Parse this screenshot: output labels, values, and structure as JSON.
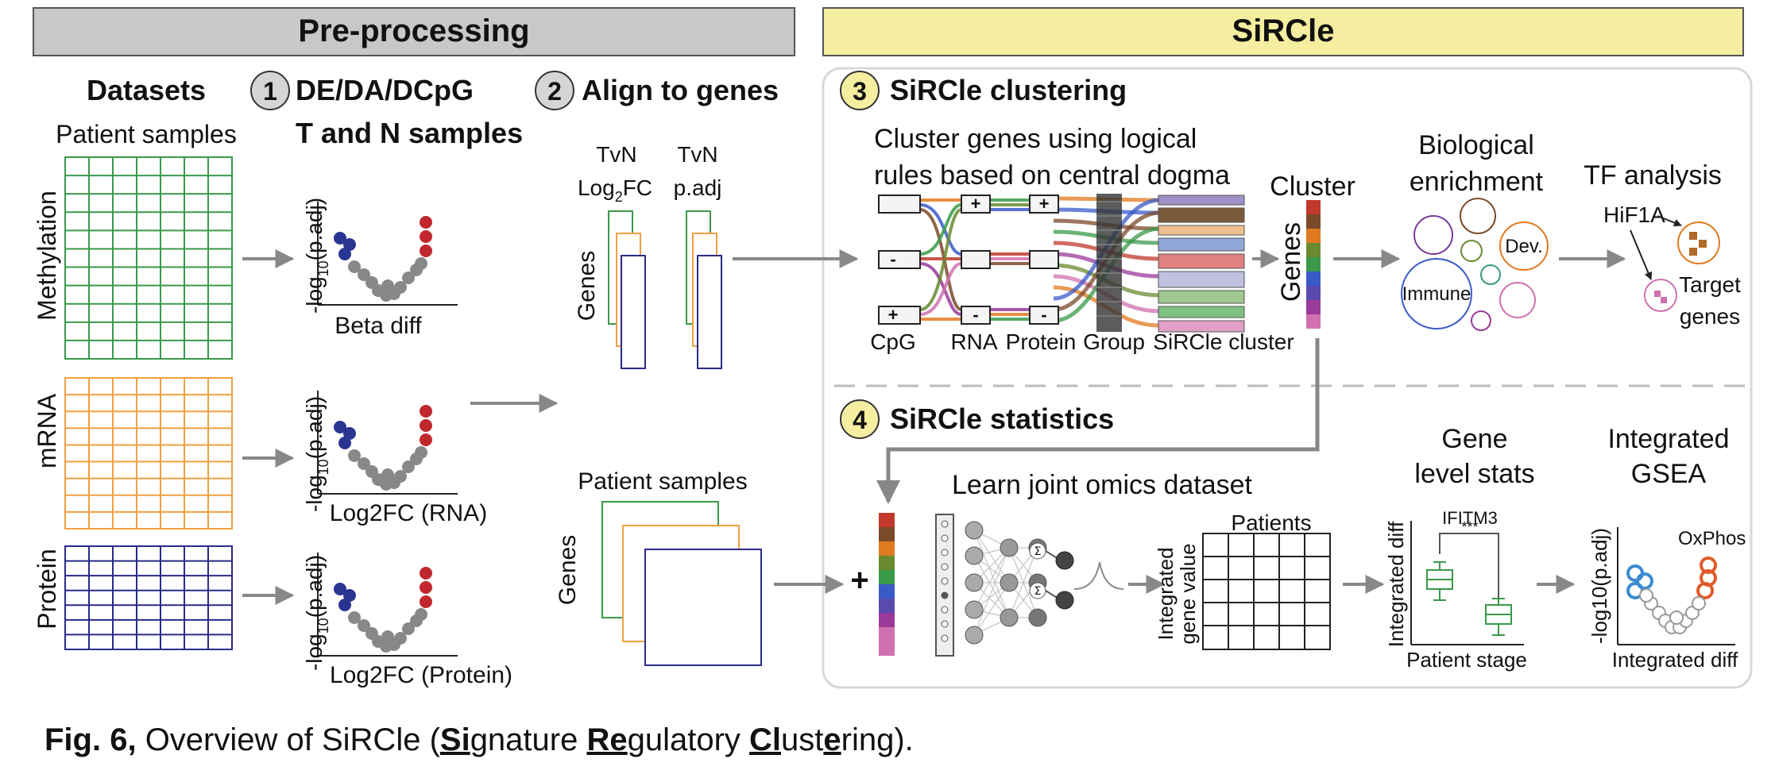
{
  "headers": {
    "preprocessing": "Pre-processing",
    "sircle": "SiRCle"
  },
  "steps": {
    "datasets": "Datasets",
    "step1_num": "1",
    "step1_line1": "DE/DA/DCpG",
    "step1_line2": "T and N samples",
    "step2_num": "2",
    "step2": "Align to genes",
    "step3_num": "3",
    "step3": "SiRCle clustering",
    "step4_num": "4",
    "step4": "SiRCle statistics"
  },
  "datasets": {
    "patient_samples": "Patient samples",
    "methylation": "Methylation",
    "mrna": "mRNA",
    "protein": "Protein"
  },
  "volcano": {
    "ylabel_pre": "-log",
    "ylabel_sub": "10",
    "ylabel_post": "(p.adj)",
    "x1": "Beta diff",
    "x2": "Log2FC (RNA)",
    "x3": "Log2FC (Protein)"
  },
  "align": {
    "col1_line1": "TvN",
    "col1_log": "Log",
    "col1_sub": "2",
    "col1_fc": "FC",
    "col2_line1": "TvN",
    "col2_line2": "p.adj",
    "genes": "Genes",
    "patient_samples": "Patient samples",
    "genes2": "Genes"
  },
  "clustering": {
    "desc_line1": "Cluster genes using logical",
    "desc_line2": "rules based on central dogma",
    "plus": "+",
    "minus": "-",
    "cpg": "CpG",
    "rna": "RNA",
    "protein": "Protein",
    "group": "Group",
    "sircle_cluster": "SiRCle cluster",
    "cluster": "Cluster",
    "genes": "Genes",
    "bio_line1": "Biological",
    "bio_line2": "enrichment",
    "immune": "Immune",
    "dev": "Dev.",
    "tf": "TF analysis",
    "hif": "HiF1A",
    "target_line1": "Target",
    "target_line2": "genes"
  },
  "statistics": {
    "plus": "+",
    "learn": "Learn joint omics dataset",
    "patients": "Patients",
    "integrated_line1": "Integrated",
    "integrated_line2": "gene value",
    "gene_line1": "Gene",
    "gene_line2": "level stats",
    "ifitm3": "IFITM3",
    "stars": "***",
    "integrated_diff": "Integrated diff",
    "patient_stage": "Patient stage",
    "gsea_line1": "Integrated",
    "gsea_line2": "GSEA",
    "oxphos": "OxPhos",
    "gsea_ylabel": "-log10(p.adj)",
    "gsea_xlabel": "Integrated diff",
    "sigma": "Σ"
  },
  "caption": {
    "figno": "Fig. 6,",
    "p1": " Overview of SiRCle (",
    "si": "Si",
    "p2": "gnature ",
    "re": "Re",
    "p3": "gulatory ",
    "cl": "Cl",
    "p4": "ust",
    "e": "e",
    "p5": "ring)."
  },
  "colors": {
    "methylation_green": "#3a9a4a",
    "mrna_orange": "#f0a040",
    "protein_navy": "#2a2a8a",
    "pre_header": "#c8c8c8",
    "sircle_header": "#f5eea0",
    "volcano_blue": "#2a3592",
    "volcano_red": "#c0282d",
    "volcano_grey": "#888888"
  },
  "cluster_colors": [
    "#c0392b",
    "#7b4a2a",
    "#e07a20",
    "#6a8a30",
    "#3a9a4a",
    "#3a5ac8",
    "#5a4ab0",
    "#9a3a9a",
    "#d070b0"
  ]
}
